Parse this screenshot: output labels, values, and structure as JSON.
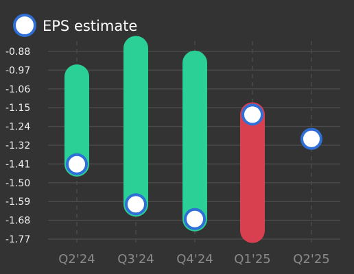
{
  "chart_data": {
    "type": "bar",
    "categories": [
      "Q2'24",
      "Q3'24",
      "Q4'24",
      "Q1'25",
      "Q2'25"
    ],
    "series": [
      {
        "name": "EPS estimate",
        "values": [
          -1.415,
          -1.605,
          -1.675,
          -1.18,
          -1.295
        ]
      },
      {
        "values": [
          -1.0,
          -0.865,
          -0.935,
          -1.73,
          null
        ]
      }
    ],
    "y_ticks": [
      "-0.88",
      "-0.97",
      "-1.06",
      "-1.15",
      "-1.24",
      "-1.32",
      "-1.41",
      "-1.50",
      "-1.59",
      "-1.68",
      "-1.77"
    ],
    "ylim": [
      -1.77,
      -0.88
    ],
    "grid": true,
    "legend": "top-left",
    "title": "",
    "xlabel": "",
    "ylabel": "",
    "colors": {
      "beat": "#2ad096",
      "miss": "#d9404f",
      "marker_fill": "#ffffff",
      "marker_stroke": "#2f6fd6",
      "grid": "#4a4a4a",
      "background": "#333333"
    }
  }
}
